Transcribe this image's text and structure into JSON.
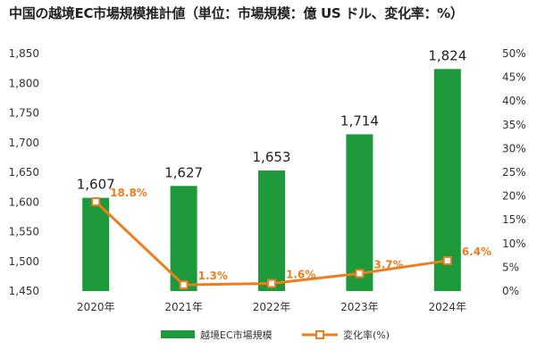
{
  "chart_data": {
    "type": "bar+line",
    "title": "中国の越境EC市場規模推計値（単位：市場規模：億 US ドル、変化率：%）",
    "categories": [
      "2020年",
      "2021年",
      "2022年",
      "2023年",
      "2024年"
    ],
    "series": [
      {
        "name": "越境EC市場規模",
        "type": "bar",
        "axis": "left",
        "values": [
          1607,
          1627,
          1653,
          1714,
          1824
        ],
        "labels": [
          "1,607",
          "1,627",
          "1,653",
          "1,714",
          "1,824"
        ],
        "color": "#1e9a3c"
      },
      {
        "name": "変化率(%)",
        "type": "line",
        "axis": "right",
        "values": [
          18.8,
          1.3,
          1.6,
          3.7,
          6.4
        ],
        "labels": [
          "18.8%",
          "1.3%",
          "1.6%",
          "3.7%",
          "6.4%"
        ],
        "color": "#ee7d1f"
      }
    ],
    "y_left": {
      "min": 1450,
      "max": 1850,
      "ticks": [
        1450,
        1500,
        1550,
        1600,
        1650,
        1700,
        1750,
        1800,
        1850
      ],
      "tick_labels": [
        "1,450",
        "1,500",
        "1,550",
        "1,600",
        "1,650",
        "1,700",
        "1,750",
        "1,800",
        "1,850"
      ]
    },
    "y_right": {
      "min": 0,
      "max": 50,
      "ticks": [
        0,
        5,
        10,
        15,
        20,
        25,
        30,
        35,
        40,
        45,
        50
      ],
      "tick_labels": [
        "0%",
        "5%",
        "10%",
        "15%",
        "20%",
        "25%",
        "30%",
        "35%",
        "40%",
        "45%",
        "50%"
      ]
    },
    "grid": false,
    "legend_position": "bottom"
  }
}
